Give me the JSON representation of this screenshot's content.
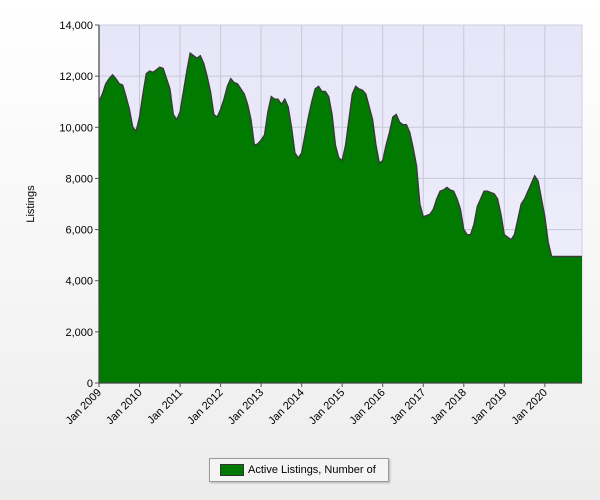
{
  "chart_data": {
    "type": "area",
    "ylabel": "Listings",
    "ylim": [
      0,
      14000
    ],
    "y_ticks": [
      "0",
      "2,000",
      "4,000",
      "6,000",
      "8,000",
      "10,000",
      "12,000",
      "14,000"
    ],
    "x_tick_labels": [
      "Jan 2009",
      "Jan 2010",
      "Jan 2011",
      "Jan 2012",
      "Jan 2013",
      "Jan 2014",
      "Jan 2015",
      "Jan 2016",
      "Jan 2017",
      "Jan 2018",
      "Jan 2019",
      "Jan 2020"
    ],
    "grid": true,
    "legend_placement": "bottom-center",
    "fill_color": "#007a00",
    "line_color": "#3a3a3a",
    "plot_background": "#e8e8f8",
    "series": [
      {
        "name": "Active Listings, Number of",
        "x": [
          "2009-01",
          "2009-02",
          "2009-03",
          "2009-04",
          "2009-05",
          "2009-06",
          "2009-07",
          "2009-08",
          "2009-09",
          "2009-10",
          "2009-11",
          "2009-12",
          "2010-01",
          "2010-02",
          "2010-03",
          "2010-04",
          "2010-05",
          "2010-06",
          "2010-07",
          "2010-08",
          "2010-09",
          "2010-10",
          "2010-11",
          "2010-12",
          "2011-01",
          "2011-02",
          "2011-03",
          "2011-04",
          "2011-05",
          "2011-06",
          "2011-07",
          "2011-08",
          "2011-09",
          "2011-10",
          "2011-11",
          "2011-12",
          "2012-01",
          "2012-02",
          "2012-03",
          "2012-04",
          "2012-05",
          "2012-06",
          "2012-07",
          "2012-08",
          "2012-09",
          "2012-10",
          "2012-11",
          "2012-12",
          "2013-01",
          "2013-02",
          "2013-03",
          "2013-04",
          "2013-05",
          "2013-06",
          "2013-07",
          "2013-08",
          "2013-09",
          "2013-10",
          "2013-11",
          "2013-12",
          "2014-01",
          "2014-02",
          "2014-03",
          "2014-04",
          "2014-05",
          "2014-06",
          "2014-07",
          "2014-08",
          "2014-09",
          "2014-10",
          "2014-11",
          "2014-12",
          "2015-01",
          "2015-02",
          "2015-03",
          "2015-04",
          "2015-05",
          "2015-06",
          "2015-07",
          "2015-08",
          "2015-09",
          "2015-10",
          "2015-11",
          "2015-12",
          "2016-01",
          "2016-02",
          "2016-03",
          "2016-04",
          "2016-05",
          "2016-06",
          "2016-07",
          "2016-08",
          "2016-09",
          "2016-10",
          "2016-11",
          "2016-12",
          "2017-01",
          "2017-02",
          "2017-03",
          "2017-04",
          "2017-05",
          "2017-06",
          "2017-07",
          "2017-08",
          "2017-09",
          "2017-10",
          "2017-11",
          "2017-12",
          "2018-01",
          "2018-02",
          "2018-03",
          "2018-04",
          "2018-05",
          "2018-06",
          "2018-07",
          "2018-08",
          "2018-09",
          "2018-10",
          "2018-11",
          "2018-12",
          "2019-01",
          "2019-02",
          "2019-03",
          "2019-04",
          "2019-05",
          "2019-06",
          "2019-07",
          "2019-08",
          "2019-09",
          "2019-10",
          "2019-11",
          "2019-12",
          "2020-01",
          "2020-02",
          "2020-03",
          "2020-04",
          "2020-05",
          "2020-06",
          "2020-07",
          "2020-08",
          "2020-09",
          "2020-10",
          "2020-11",
          "2020-12"
        ],
        "values": [
          11000,
          11300,
          11700,
          11900,
          12050,
          11900,
          11700,
          11650,
          11200,
          10700,
          10000,
          9850,
          10400,
          11300,
          12100,
          12200,
          12150,
          12250,
          12350,
          12300,
          11900,
          11500,
          10500,
          10300,
          10600,
          11400,
          12200,
          12900,
          12800,
          12700,
          12800,
          12500,
          12000,
          11400,
          10500,
          10400,
          10700,
          11100,
          11600,
          11900,
          11750,
          11700,
          11500,
          11300,
          10900,
          10300,
          9300,
          9350,
          9500,
          9700,
          10600,
          11200,
          11100,
          11100,
          10900,
          11100,
          10800,
          10000,
          9000,
          8800,
          9000,
          9700,
          10400,
          11000,
          11500,
          11600,
          11400,
          11400,
          11200,
          10500,
          9300,
          8800,
          8700,
          9300,
          10300,
          11300,
          11600,
          11500,
          11450,
          11300,
          10800,
          10300,
          9300,
          8600,
          8700,
          9300,
          9800,
          10400,
          10500,
          10200,
          10100,
          10100,
          9800,
          9200,
          8500,
          7000,
          6500,
          6550,
          6600,
          6800,
          7200,
          7500,
          7550,
          7650,
          7550,
          7500,
          7200,
          6800,
          6000,
          5800,
          5800,
          6200,
          6900,
          7200,
          7500,
          7500,
          7450,
          7400,
          7200,
          6600,
          5800,
          5700,
          5600,
          5800,
          6400,
          7000,
          7200,
          7500,
          7800,
          8100,
          7900,
          7200,
          6500,
          5500,
          4950,
          4950,
          4950,
          4950,
          4950,
          4950,
          4950,
          4950,
          4950,
          4950
        ]
      }
    ]
  }
}
